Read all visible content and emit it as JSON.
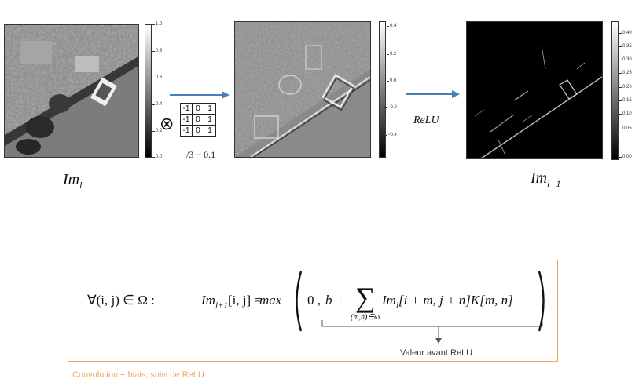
{
  "images": {
    "input_label": "Im",
    "input_sub": "l",
    "output_label": "Im",
    "output_sub": "l+1"
  },
  "colorbars": {
    "input_ticks": [
      "1.0",
      "0.8",
      "0.6",
      "0.4",
      "0.2",
      "0.0"
    ],
    "conv_ticks": [
      "0.4",
      "0.2",
      "0.0",
      "−0.2",
      "−0.4"
    ],
    "relu_ticks": [
      "0.40",
      "0.35",
      "0.30",
      "0.25",
      "0.20",
      "0.15",
      "0.10",
      "0.05",
      "0.00"
    ]
  },
  "operation": {
    "convolve_symbol": "⊗",
    "kernel": [
      [
        "-1",
        "0",
        "1"
      ],
      [
        "-1",
        "0",
        "1"
      ],
      [
        "-1",
        "0",
        "1"
      ]
    ],
    "kernel_note": "/3 − 0.1",
    "relu_label": "ReLU"
  },
  "formula": {
    "forall": "∀(i, j) ∈ Ω :",
    "lhs_im": "Im",
    "lhs_sub": "l+1",
    "lhs_idx": "[i, j] =",
    "max": "max",
    "zero": "0 ,",
    "bias": "b +",
    "sum_symbol": "∑",
    "sum_sub": "(m,n)∈ω",
    "term_im": "Im",
    "term_sub": "l",
    "term_rest": "[i + m, j + n]K[m, n]",
    "brace_label": "Valeur avant ReLU"
  },
  "caption": "Convolution + biais, suivi de ReLU",
  "colors": {
    "arrow": "#4a7ebb",
    "box_border": "#f2a45a",
    "caption": "#f2a45a"
  }
}
